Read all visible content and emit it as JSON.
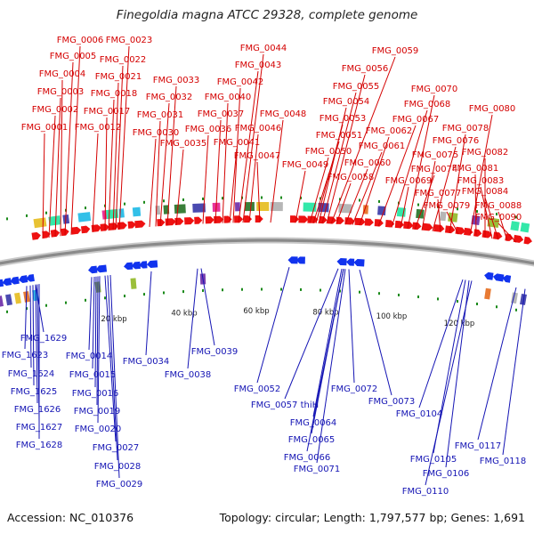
{
  "title": "Finegoldia magna ATCC 29328, complete genome",
  "footer": {
    "accession": "Accession: NC_010376",
    "summary": "Topology: circular; Length: 1,797,577 bp; Genes: 1,691"
  },
  "colors": {
    "forward": "#ee1111",
    "reverse": "#1133ee",
    "forward_label": "#d40000",
    "reverse_label": "#1414b4",
    "backbone": "#8a8a8a",
    "tick": "#1a8a1a"
  },
  "scale_ticks": [
    "20 kbp",
    "40 kbp",
    "60 kbp",
    "80 kbp",
    "100 kbp",
    "120 kbp"
  ],
  "forward_genes": [
    "FMG_0001",
    "FMG_0002",
    "FMG_0003",
    "FMG_0004",
    "FMG_0005",
    "FMG_0006",
    "FMG_0012",
    "FMG_0017",
    "FMG_0018",
    "FMG_0021",
    "FMG_0022",
    "FMG_0023",
    "FMG_0030",
    "FMG_0031",
    "FMG_0032",
    "FMG_0033",
    "FMG_0035",
    "FMG_0036",
    "FMG_0037",
    "FMG_0040",
    "FMG_0041",
    "FMG_0042",
    "FMG_0043",
    "FMG_0044",
    "FMG_0046",
    "FMG_0047",
    "FMG_0048",
    "FMG_0049",
    "FMG_0050",
    "FMG_0051",
    "FMG_0053",
    "FMG_0054",
    "FMG_0055",
    "FMG_0056",
    "FMG_0058",
    "FMG_0059",
    "FMG_0060",
    "FMG_0061",
    "FMG_0062",
    "FMG_0067",
    "FMG_0068",
    "FMG_0069",
    "FMG_0070",
    "FMG_0074",
    "FMG_0075",
    "FMG_0076",
    "FMG_0077",
    "FMG_0078",
    "FMG_0079",
    "FMG_0080",
    "FMG_0081",
    "FMG_0082",
    "FMG_0083",
    "FMG_0084",
    "FMG_0088",
    "FMG_0090"
  ],
  "reverse_genes": [
    "FMG_1629",
    "FMG_1623",
    "FMG_1624",
    "FMG_1625",
    "FMG_1626",
    "FMG_1627",
    "FMG_1628",
    "FMG_0014",
    "FMG_0015",
    "FMG_0016",
    "FMG_0019",
    "FMG_0020",
    "FMG_0027",
    "FMG_0028",
    "FMG_0029",
    "FMG_0034",
    "FMG_0038",
    "FMG_0039",
    "FMG_0052",
    "FMG_0057 thiH",
    "FMG_0064",
    "FMG_0065",
    "FMG_0066",
    "FMG_0071",
    "FMG_0072",
    "FMG_0073",
    "FMG_0104",
    "FMG_0105",
    "FMG_0106",
    "FMG_0110",
    "FMG_0117",
    "FMG_0118"
  ]
}
